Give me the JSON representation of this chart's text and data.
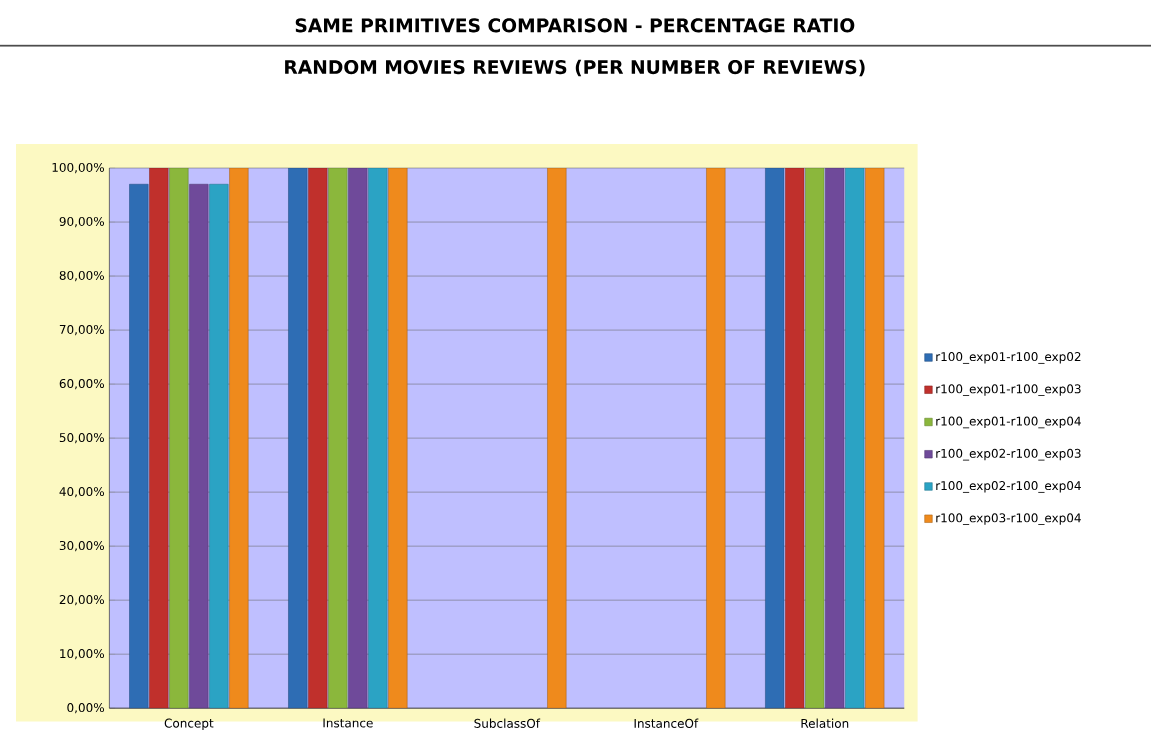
{
  "chart_data": {
    "type": "bar",
    "title": "SAME PRIMITIVES COMPARISON - PERCENTAGE   RATIO",
    "subtitle": "RANDOM MOVIES REVIEWS (PER NUMBER OF REVIEWS)",
    "categories": [
      "Concept",
      "Instance",
      "SubclassOf",
      "InstanceOf",
      "Relation"
    ],
    "series": [
      {
        "name": "r100_exp01-r100_exp02",
        "color": "#2e6db4",
        "values": [
          97,
          100,
          null,
          null,
          100
        ]
      },
      {
        "name": "r100_exp01-r100_exp03",
        "color": "#c0302c",
        "values": [
          100,
          100,
          null,
          null,
          100
        ]
      },
      {
        "name": "r100_exp01-r100_exp04",
        "color": "#8bb73c",
        "values": [
          100,
          100,
          null,
          null,
          100
        ]
      },
      {
        "name": "r100_exp02-r100_exp03",
        "color": "#6f4a9a",
        "values": [
          97,
          100,
          null,
          null,
          100
        ]
      },
      {
        "name": "r100_exp02-r100_exp04",
        "color": "#2ba3c4",
        "values": [
          97,
          100,
          null,
          null,
          100
        ]
      },
      {
        "name": "r100_exp03-r100_exp04",
        "color": "#ef8a1c",
        "values": [
          100,
          100,
          100,
          100,
          100
        ]
      }
    ],
    "ylim": [
      0,
      100
    ],
    "yticks": [
      {
        "value": 0,
        "label": "0,00%"
      },
      {
        "value": 10,
        "label": "10,00%"
      },
      {
        "value": 20,
        "label": "20,00%"
      },
      {
        "value": 30,
        "label": "30,00%"
      },
      {
        "value": 40,
        "label": "40,00%"
      },
      {
        "value": 50,
        "label": "50,00%"
      },
      {
        "value": 60,
        "label": "60,00%"
      },
      {
        "value": 70,
        "label": "70,00%"
      },
      {
        "value": 80,
        "label": "80,00%"
      },
      {
        "value": 90,
        "label": "90,00%"
      },
      {
        "value": 100,
        "label": "100,00%"
      }
    ],
    "grid": "y",
    "legend": "right"
  }
}
